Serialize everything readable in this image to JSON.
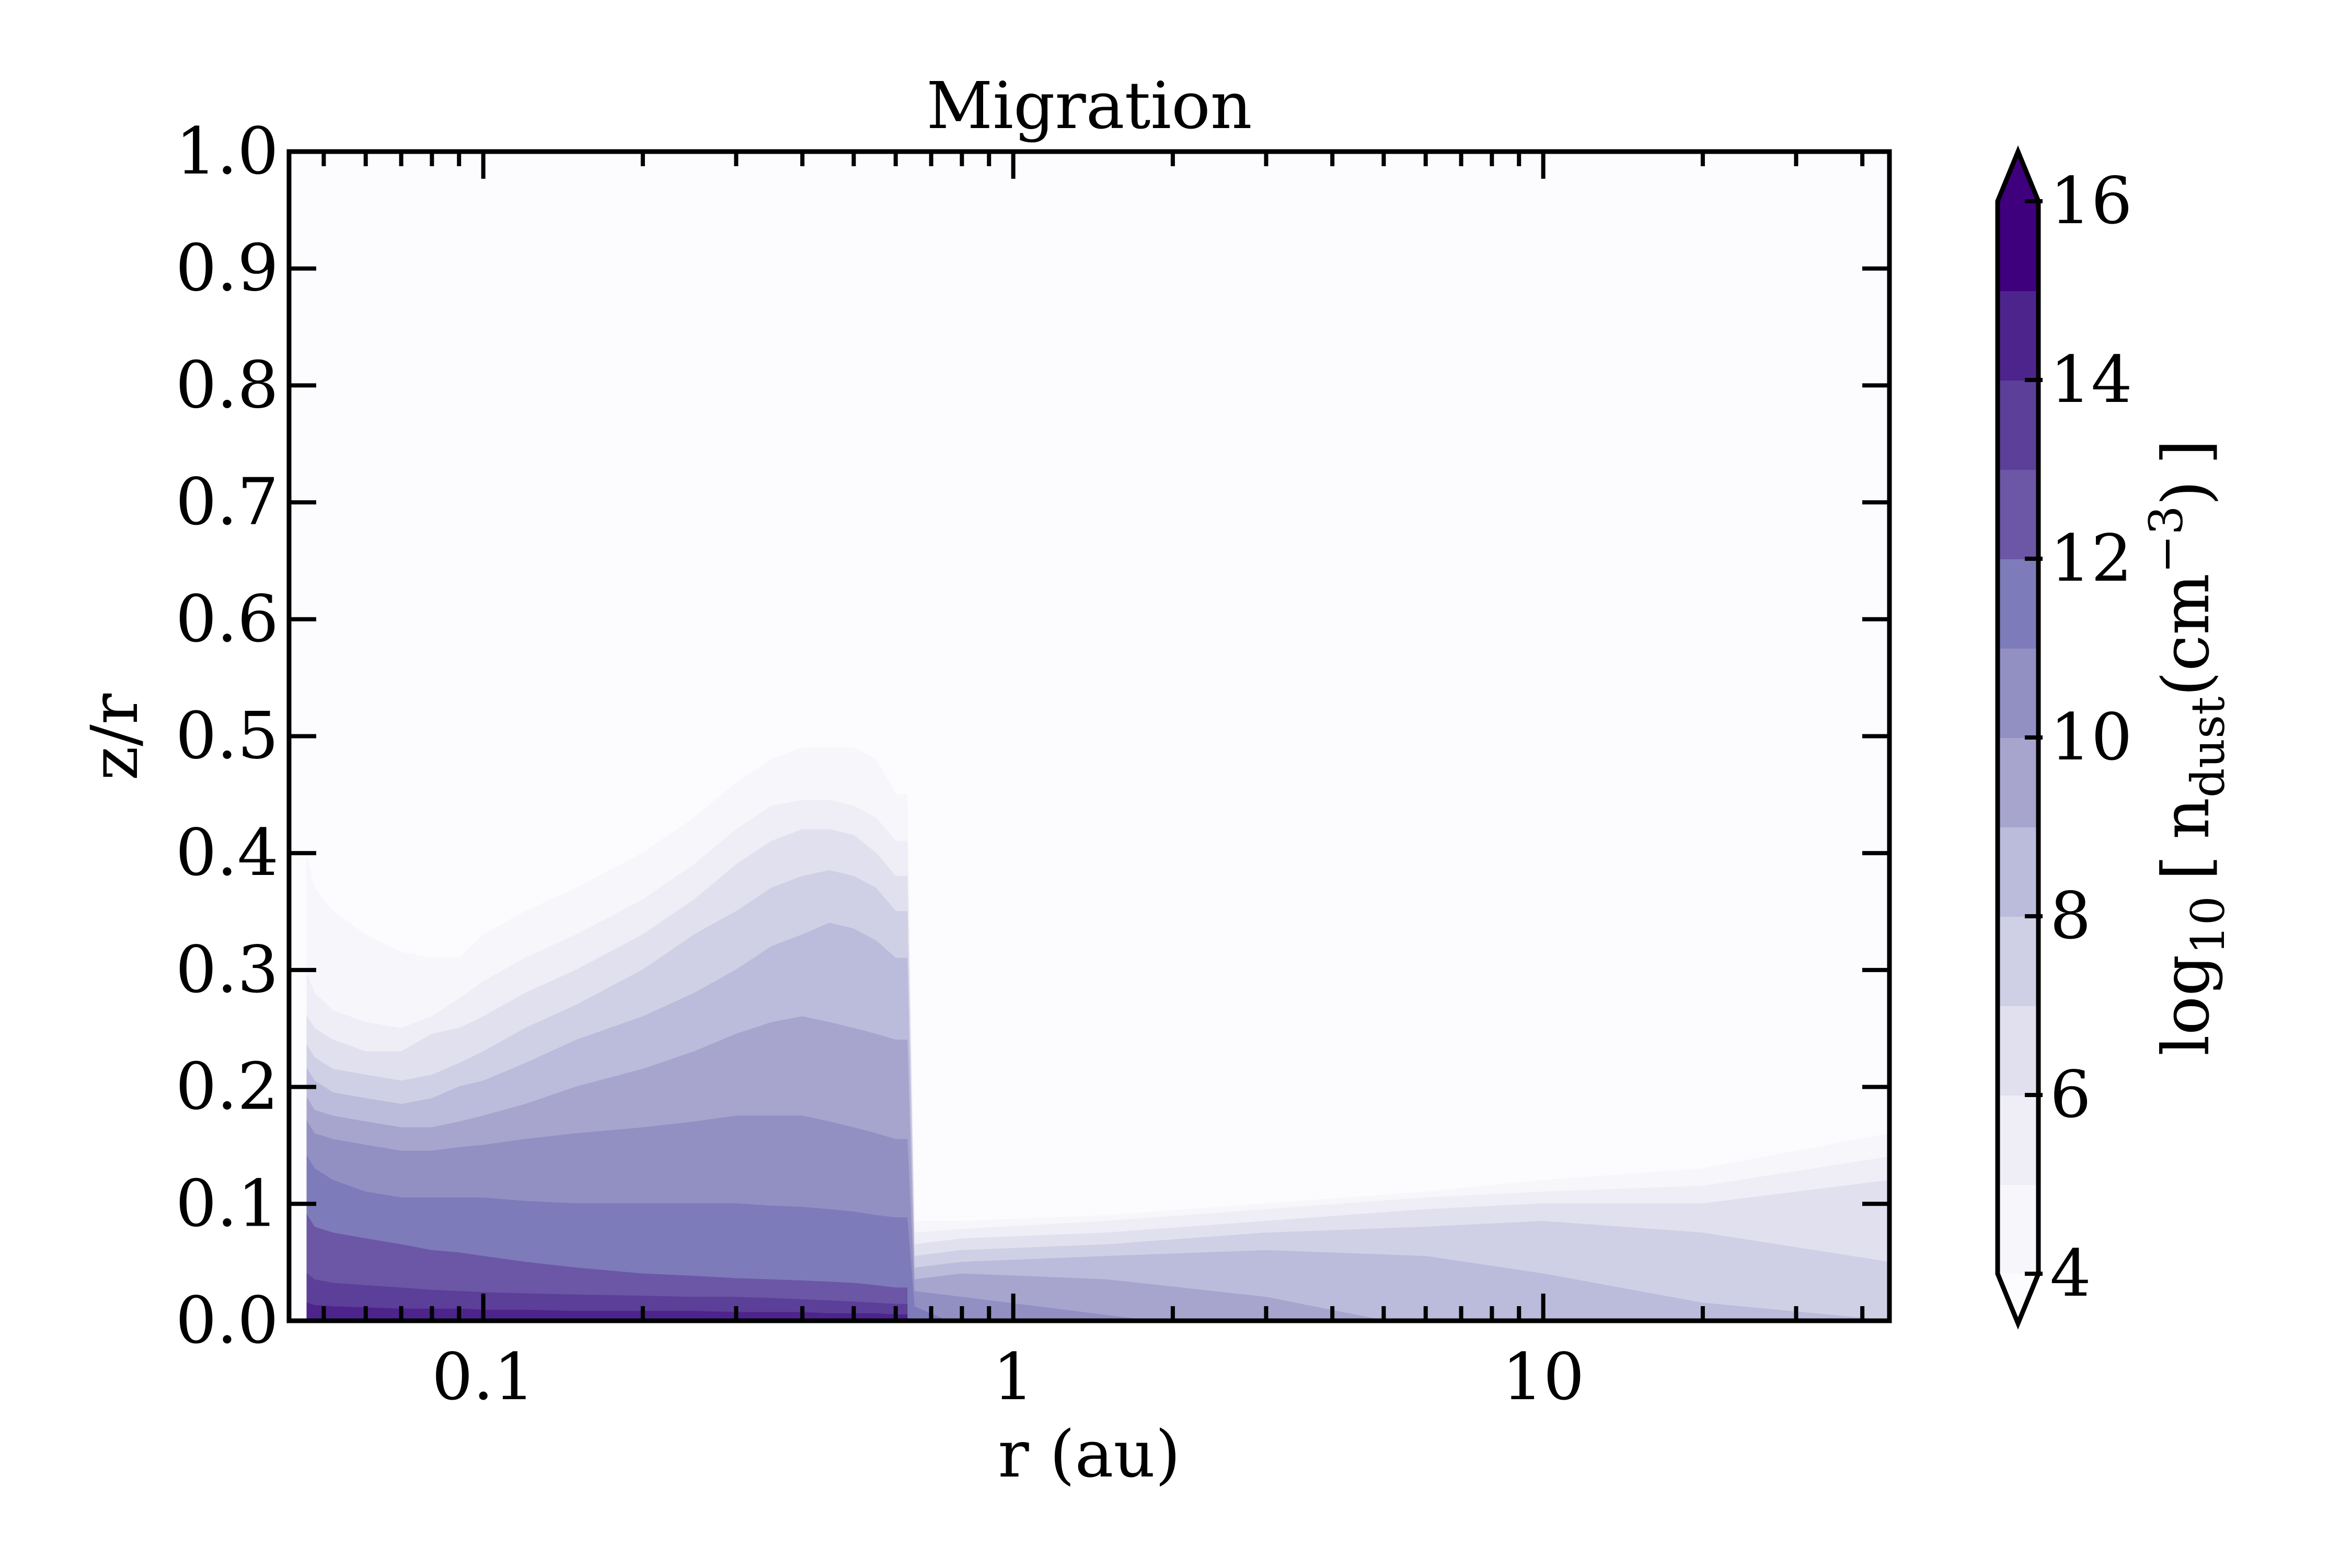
{
  "chart_data": {
    "type": "heatmap",
    "subtype": "filled-contour",
    "title": "Migration",
    "xlabel": "r (au)",
    "ylabel": "z/r",
    "xscale": "log",
    "xlim": [
      0.043,
      45
    ],
    "ylim": [
      0.0,
      1.0
    ],
    "xticks": [
      0.1,
      1,
      10
    ],
    "xticklabels": [
      "0.1",
      "1",
      "10"
    ],
    "yticks": [
      0.0,
      0.1,
      0.2,
      0.3,
      0.4,
      0.5,
      0.6,
      0.7,
      0.8,
      0.9,
      1.0
    ],
    "yticklabels": [
      "0.0",
      "0.1",
      "0.2",
      "0.3",
      "0.4",
      "0.5",
      "0.6",
      "0.7",
      "0.8",
      "0.9",
      "1.0"
    ],
    "colorbar": {
      "label_main": "log",
      "label_sub": "10",
      "label_bracket_open": "[",
      "label_n": "n",
      "label_n_sub": "dust",
      "label_unit_open": "(cm",
      "label_unit_sup": "−3",
      "label_unit_close": ")",
      "label_bracket_close": "]",
      "vmin": 4,
      "vmax": 16,
      "ticks": [
        4,
        6,
        8,
        10,
        12,
        14,
        16
      ],
      "ticklabels": [
        "4",
        "6",
        "8",
        "10",
        "12",
        "14",
        "16"
      ],
      "extend": "both",
      "colormap": "Purples",
      "levels": [
        4,
        5,
        6,
        7,
        8,
        9,
        10,
        11,
        12,
        13,
        14,
        15,
        16
      ],
      "level_colors": [
        "#f7f6fa",
        "#efedf5",
        "#e1e0ee",
        "#cfd0e5",
        "#bbbbdb",
        "#a7a4cd",
        "#928fc3",
        "#7d7bb9",
        "#6b57a5",
        "#5c3f98",
        "#4d248b",
        "#3f007d"
      ],
      "under_color": "#fcfbfd",
      "over_color": "#3f007d"
    },
    "background_color": "#fcfbfd",
    "contours": [
      {
        "level": 4,
        "x": [
          0.0465,
          0.048,
          0.052,
          0.06,
          0.07,
          0.08,
          0.09,
          0.1,
          0.12,
          0.15,
          0.2,
          0.25,
          0.3,
          0.35,
          0.4,
          0.45,
          0.5,
          0.55,
          0.6
        ],
        "top": [
          0.395,
          0.37,
          0.35,
          0.33,
          0.315,
          0.31,
          0.31,
          0.33,
          0.35,
          0.37,
          0.4,
          0.43,
          0.46,
          0.48,
          0.49,
          0.49,
          0.49,
          0.48,
          0.45
        ],
        "outer_x": [
          0.65,
          0.8,
          1.5,
          3,
          6,
          10,
          20,
          45
        ],
        "outer_top": [
          0.085,
          0.085,
          0.09,
          0.1,
          0.11,
          0.12,
          0.13,
          0.16
        ]
      },
      {
        "level": 5,
        "x": [
          0.0465,
          0.048,
          0.052,
          0.06,
          0.07,
          0.08,
          0.09,
          0.1,
          0.12,
          0.15,
          0.2,
          0.25,
          0.3,
          0.35,
          0.4,
          0.45,
          0.5,
          0.55,
          0.6
        ],
        "top": [
          0.295,
          0.28,
          0.265,
          0.255,
          0.25,
          0.26,
          0.275,
          0.29,
          0.31,
          0.33,
          0.36,
          0.39,
          0.42,
          0.44,
          0.445,
          0.445,
          0.44,
          0.43,
          0.41
        ],
        "outer_x": [
          0.65,
          0.8,
          1.5,
          3,
          6,
          10,
          20,
          45
        ],
        "outer_top": [
          0.075,
          0.078,
          0.085,
          0.095,
          0.105,
          0.11,
          0.115,
          0.14
        ]
      },
      {
        "level": 6,
        "x": [
          0.0465,
          0.048,
          0.052,
          0.06,
          0.07,
          0.08,
          0.09,
          0.1,
          0.12,
          0.15,
          0.2,
          0.25,
          0.3,
          0.35,
          0.4,
          0.45,
          0.5,
          0.55,
          0.6
        ],
        "top": [
          0.26,
          0.25,
          0.24,
          0.23,
          0.23,
          0.245,
          0.25,
          0.26,
          0.28,
          0.3,
          0.33,
          0.36,
          0.39,
          0.41,
          0.42,
          0.42,
          0.415,
          0.4,
          0.38
        ],
        "outer_x": [
          0.65,
          0.8,
          1.5,
          3,
          6,
          10,
          20,
          45
        ],
        "outer_top": [
          0.065,
          0.07,
          0.075,
          0.085,
          0.095,
          0.1,
          0.1,
          0.12
        ]
      },
      {
        "level": 7,
        "x": [
          0.0465,
          0.048,
          0.052,
          0.06,
          0.07,
          0.08,
          0.09,
          0.1,
          0.12,
          0.15,
          0.2,
          0.25,
          0.3,
          0.35,
          0.4,
          0.45,
          0.5,
          0.55,
          0.6
        ],
        "top": [
          0.235,
          0.225,
          0.215,
          0.21,
          0.205,
          0.21,
          0.22,
          0.23,
          0.25,
          0.27,
          0.3,
          0.33,
          0.35,
          0.37,
          0.38,
          0.385,
          0.38,
          0.37,
          0.35
        ],
        "outer_x": [
          0.65,
          0.8,
          1.5,
          3,
          6,
          10,
          20,
          45
        ],
        "outer_top": [
          0.055,
          0.06,
          0.065,
          0.075,
          0.08,
          0.085,
          0.075,
          0.05
        ]
      },
      {
        "level": 8,
        "x": [
          0.0465,
          0.048,
          0.052,
          0.06,
          0.07,
          0.08,
          0.09,
          0.1,
          0.12,
          0.15,
          0.2,
          0.25,
          0.3,
          0.35,
          0.4,
          0.45,
          0.5,
          0.55,
          0.6
        ],
        "top": [
          0.215,
          0.205,
          0.195,
          0.19,
          0.185,
          0.19,
          0.2,
          0.205,
          0.22,
          0.24,
          0.26,
          0.28,
          0.3,
          0.32,
          0.33,
          0.34,
          0.335,
          0.325,
          0.31
        ],
        "outer_x": [
          0.65,
          0.8,
          1.5,
          3,
          6,
          10,
          20,
          45
        ],
        "outer_top": [
          0.045,
          0.05,
          0.055,
          0.06,
          0.055,
          0.04,
          0.015,
          0.0
        ]
      },
      {
        "level": 9,
        "x": [
          0.0465,
          0.048,
          0.052,
          0.06,
          0.07,
          0.08,
          0.09,
          0.1,
          0.12,
          0.15,
          0.2,
          0.25,
          0.3,
          0.35,
          0.4,
          0.45,
          0.5,
          0.55,
          0.6
        ],
        "top": [
          0.19,
          0.18,
          0.175,
          0.17,
          0.165,
          0.165,
          0.17,
          0.175,
          0.185,
          0.2,
          0.215,
          0.23,
          0.245,
          0.255,
          0.26,
          0.255,
          0.25,
          0.245,
          0.24
        ],
        "outer_x": [
          0.65,
          0.8,
          1.5,
          3,
          5
        ],
        "outer_top": [
          0.035,
          0.04,
          0.035,
          0.02,
          0.0
        ]
      },
      {
        "level": 10,
        "x": [
          0.0465,
          0.048,
          0.052,
          0.06,
          0.07,
          0.08,
          0.09,
          0.1,
          0.12,
          0.15,
          0.2,
          0.25,
          0.3,
          0.35,
          0.4,
          0.45,
          0.5,
          0.55,
          0.6
        ],
        "top": [
          0.17,
          0.16,
          0.155,
          0.15,
          0.145,
          0.145,
          0.148,
          0.15,
          0.155,
          0.16,
          0.165,
          0.17,
          0.175,
          0.175,
          0.175,
          0.17,
          0.165,
          0.16,
          0.155
        ],
        "outer_x": [
          0.65,
          0.8,
          1.2,
          1.8
        ],
        "outer_top": [
          0.025,
          0.02,
          0.01,
          0.0
        ]
      },
      {
        "level": 11,
        "x": [
          0.0465,
          0.048,
          0.052,
          0.06,
          0.07,
          0.08,
          0.09,
          0.1,
          0.12,
          0.15,
          0.2,
          0.25,
          0.3,
          0.35,
          0.4,
          0.45,
          0.5,
          0.55,
          0.6
        ],
        "top": [
          0.14,
          0.13,
          0.12,
          0.11,
          0.105,
          0.105,
          0.105,
          0.105,
          0.102,
          0.1,
          0.1,
          0.1,
          0.1,
          0.098,
          0.097,
          0.095,
          0.093,
          0.09,
          0.088
        ],
        "outer_x": [
          0.65,
          0.75
        ],
        "outer_top": [
          0.012,
          0.0
        ]
      },
      {
        "level": 12,
        "x": [
          0.0465,
          0.048,
          0.052,
          0.06,
          0.07,
          0.08,
          0.09,
          0.1,
          0.12,
          0.15,
          0.2,
          0.25,
          0.3,
          0.35,
          0.4,
          0.45,
          0.5,
          0.55,
          0.6
        ],
        "top": [
          0.09,
          0.08,
          0.075,
          0.07,
          0.065,
          0.06,
          0.058,
          0.055,
          0.05,
          0.045,
          0.04,
          0.038,
          0.036,
          0.035,
          0.034,
          0.033,
          0.032,
          0.03,
          0.028
        ],
        "outer_x": [],
        "outer_top": []
      },
      {
        "level": 13,
        "x": [
          0.0465,
          0.048,
          0.052,
          0.06,
          0.07,
          0.08,
          0.09,
          0.1,
          0.12,
          0.15,
          0.2,
          0.25,
          0.3,
          0.35,
          0.4,
          0.45,
          0.5,
          0.55,
          0.6
        ],
        "top": [
          0.04,
          0.035,
          0.032,
          0.03,
          0.028,
          0.026,
          0.025,
          0.024,
          0.023,
          0.022,
          0.021,
          0.02,
          0.02,
          0.019,
          0.018,
          0.017,
          0.016,
          0.015,
          0.014
        ],
        "outer_x": [],
        "outer_top": []
      },
      {
        "level": 14,
        "x": [
          0.0465,
          0.048,
          0.052,
          0.06,
          0.07,
          0.08,
          0.09,
          0.1,
          0.12,
          0.15,
          0.2,
          0.25,
          0.3,
          0.35,
          0.4,
          0.45,
          0.5,
          0.55,
          0.6
        ],
        "top": [
          0.015,
          0.013,
          0.012,
          0.011,
          0.01,
          0.01,
          0.01,
          0.009,
          0.009,
          0.008,
          0.008,
          0.008,
          0.007,
          0.007,
          0.007,
          0.006,
          0.006,
          0.006,
          0.005
        ],
        "outer_x": [],
        "outer_top": []
      }
    ]
  }
}
